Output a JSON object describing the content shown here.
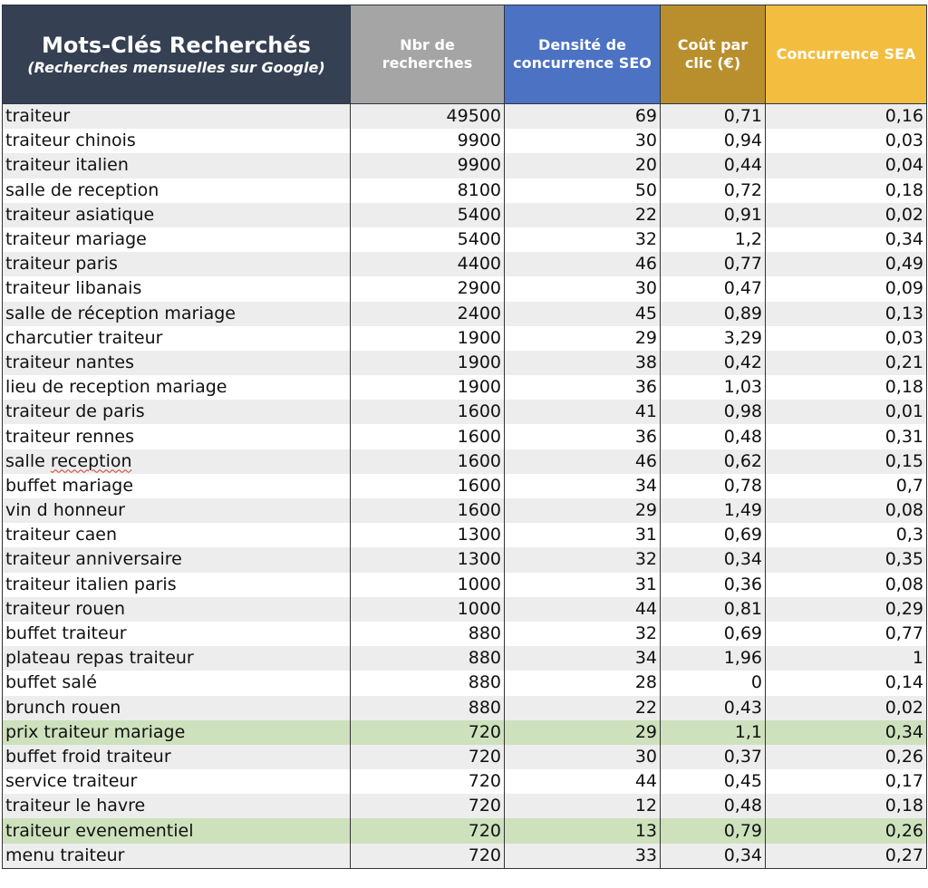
{
  "headers": {
    "keyword_title": "Mots-Clés Recherchés",
    "keyword_subtitle": "(Recherches mensuelles sur Google)",
    "searches": "Nbr de recherches",
    "seo": "Densité de concurrence SEO",
    "cpc": "Coût par clic (€)",
    "sea": "Concurrence SEA"
  },
  "colors": {
    "header_keyword": "#354052",
    "header_searches": "#a5a5a5",
    "header_seo": "#4c72c4",
    "header_cpc": "#b98f2e",
    "header_sea": "#f3be3f",
    "row_highlight": "#cde1bd",
    "row_stripe": "#ededed"
  },
  "rows": [
    {
      "keyword": "traiteur",
      "searches": "49500",
      "seo": "69",
      "cpc": "0,71",
      "sea": "0,16"
    },
    {
      "keyword": "traiteur chinois",
      "searches": "9900",
      "seo": "30",
      "cpc": "0,94",
      "sea": "0,03"
    },
    {
      "keyword": "traiteur italien",
      "searches": "9900",
      "seo": "20",
      "cpc": "0,44",
      "sea": "0,04"
    },
    {
      "keyword": "salle de reception",
      "searches": "8100",
      "seo": "50",
      "cpc": "0,72",
      "sea": "0,18"
    },
    {
      "keyword": "traiteur asiatique",
      "searches": "5400",
      "seo": "22",
      "cpc": "0,91",
      "sea": "0,02"
    },
    {
      "keyword": "traiteur mariage",
      "searches": "5400",
      "seo": "32",
      "cpc": "1,2",
      "sea": "0,34"
    },
    {
      "keyword": "traiteur paris",
      "searches": "4400",
      "seo": "46",
      "cpc": "0,77",
      "sea": "0,49"
    },
    {
      "keyword": "traiteur libanais",
      "searches": "2900",
      "seo": "30",
      "cpc": "0,47",
      "sea": "0,09"
    },
    {
      "keyword": "salle de réception mariage",
      "searches": "2400",
      "seo": "45",
      "cpc": "0,89",
      "sea": "0,13"
    },
    {
      "keyword": "charcutier traiteur",
      "searches": "1900",
      "seo": "29",
      "cpc": "3,29",
      "sea": "0,03"
    },
    {
      "keyword": "traiteur nantes",
      "searches": "1900",
      "seo": "38",
      "cpc": "0,42",
      "sea": "0,21"
    },
    {
      "keyword": "lieu de reception mariage",
      "searches": "1900",
      "seo": "36",
      "cpc": "1,03",
      "sea": "0,18"
    },
    {
      "keyword": "traiteur de paris",
      "searches": "1600",
      "seo": "41",
      "cpc": "0,98",
      "sea": "0,01"
    },
    {
      "keyword": "traiteur rennes",
      "searches": "1600",
      "seo": "36",
      "cpc": "0,48",
      "sea": "0,31"
    },
    {
      "keyword": "salle reception",
      "searches": "1600",
      "seo": "46",
      "cpc": "0,62",
      "sea": "0,15"
    },
    {
      "keyword": "buffet mariage",
      "searches": "1600",
      "seo": "34",
      "cpc": "0,78",
      "sea": "0,7"
    },
    {
      "keyword": "vin d honneur",
      "searches": "1600",
      "seo": "29",
      "cpc": "1,49",
      "sea": "0,08"
    },
    {
      "keyword": "traiteur caen",
      "searches": "1300",
      "seo": "31",
      "cpc": "0,69",
      "sea": "0,3"
    },
    {
      "keyword": "traiteur anniversaire",
      "searches": "1300",
      "seo": "32",
      "cpc": "0,34",
      "sea": "0,35"
    },
    {
      "keyword": "traiteur italien paris",
      "searches": "1000",
      "seo": "31",
      "cpc": "0,36",
      "sea": "0,08"
    },
    {
      "keyword": "traiteur rouen",
      "searches": "1000",
      "seo": "44",
      "cpc": "0,81",
      "sea": "0,29"
    },
    {
      "keyword": "buffet traiteur",
      "searches": "880",
      "seo": "32",
      "cpc": "0,69",
      "sea": "0,77"
    },
    {
      "keyword": "plateau repas traiteur",
      "searches": "880",
      "seo": "34",
      "cpc": "1,96",
      "sea": "1"
    },
    {
      "keyword": "buffet salé",
      "searches": "880",
      "seo": "28",
      "cpc": "0",
      "sea": "0,14"
    },
    {
      "keyword": "brunch rouen",
      "searches": "880",
      "seo": "22",
      "cpc": "0,43",
      "sea": "0,02"
    },
    {
      "keyword": "prix traiteur mariage",
      "searches": "720",
      "seo": "29",
      "cpc": "1,1",
      "sea": "0,34",
      "highlight": true
    },
    {
      "keyword": "buffet froid traiteur",
      "searches": "720",
      "seo": "30",
      "cpc": "0,37",
      "sea": "0,26"
    },
    {
      "keyword": "service traiteur",
      "searches": "720",
      "seo": "44",
      "cpc": "0,45",
      "sea": "0,17"
    },
    {
      "keyword": "traiteur le havre",
      "searches": "720",
      "seo": "12",
      "cpc": "0,48",
      "sea": "0,18"
    },
    {
      "keyword": "traiteur evenementiel",
      "searches": "720",
      "seo": "13",
      "cpc": "0,79",
      "sea": "0,26",
      "highlight": true
    },
    {
      "keyword": "menu traiteur",
      "searches": "720",
      "seo": "33",
      "cpc": "0,34",
      "sea": "0,27"
    }
  ]
}
